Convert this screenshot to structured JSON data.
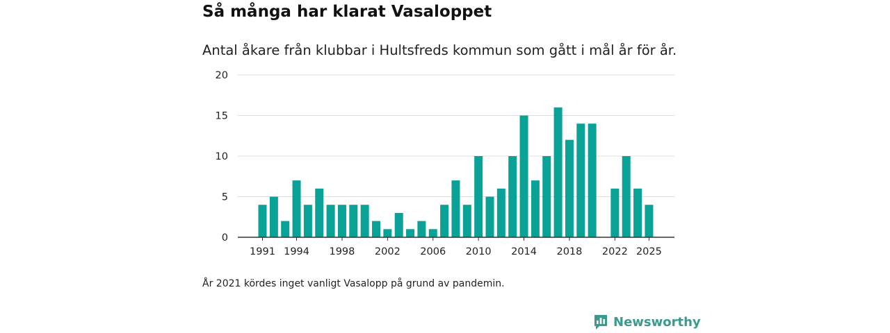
{
  "title": "Så många har klarat Vasaloppet",
  "subtitle": "Antal åkare från klubbar i Hultsfreds kommun som gått i mål år för år.",
  "footnote": "År 2021 kördes inget vanligt Vasalopp på grund av pandemin.",
  "brand": {
    "name": "Newsworthy",
    "logo_icon": "newsworthy-chart-icon",
    "color": "#3a9a8c"
  },
  "colors": {
    "bar": "#0aa196",
    "grid": "#dddddd",
    "axis": "#333333"
  },
  "chart_data": {
    "type": "bar",
    "title": "Så många har klarat Vasaloppet",
    "xlabel": "",
    "ylabel": "",
    "ylim": [
      0,
      20
    ],
    "yticks": [
      0,
      5,
      10,
      15,
      20
    ],
    "xtick_labels": [
      "1991",
      "1994",
      "1998",
      "2002",
      "2006",
      "2010",
      "2014",
      "2018",
      "2022",
      "2025"
    ],
    "x_range": [
      1991,
      2025
    ],
    "grid": true,
    "categories": [
      1991,
      1992,
      1993,
      1994,
      1995,
      1996,
      1997,
      1998,
      1999,
      2000,
      2001,
      2002,
      2003,
      2004,
      2005,
      2006,
      2007,
      2008,
      2009,
      2010,
      2011,
      2012,
      2013,
      2014,
      2015,
      2016,
      2017,
      2018,
      2019,
      2020,
      2022,
      2023,
      2024,
      2025
    ],
    "values": [
      4,
      5,
      2,
      7,
      4,
      6,
      4,
      4,
      4,
      4,
      2,
      1,
      3,
      1,
      2,
      1,
      4,
      7,
      4,
      10,
      5,
      6,
      10,
      15,
      7,
      10,
      16,
      12,
      14,
      14,
      6,
      10,
      6,
      4
    ]
  }
}
